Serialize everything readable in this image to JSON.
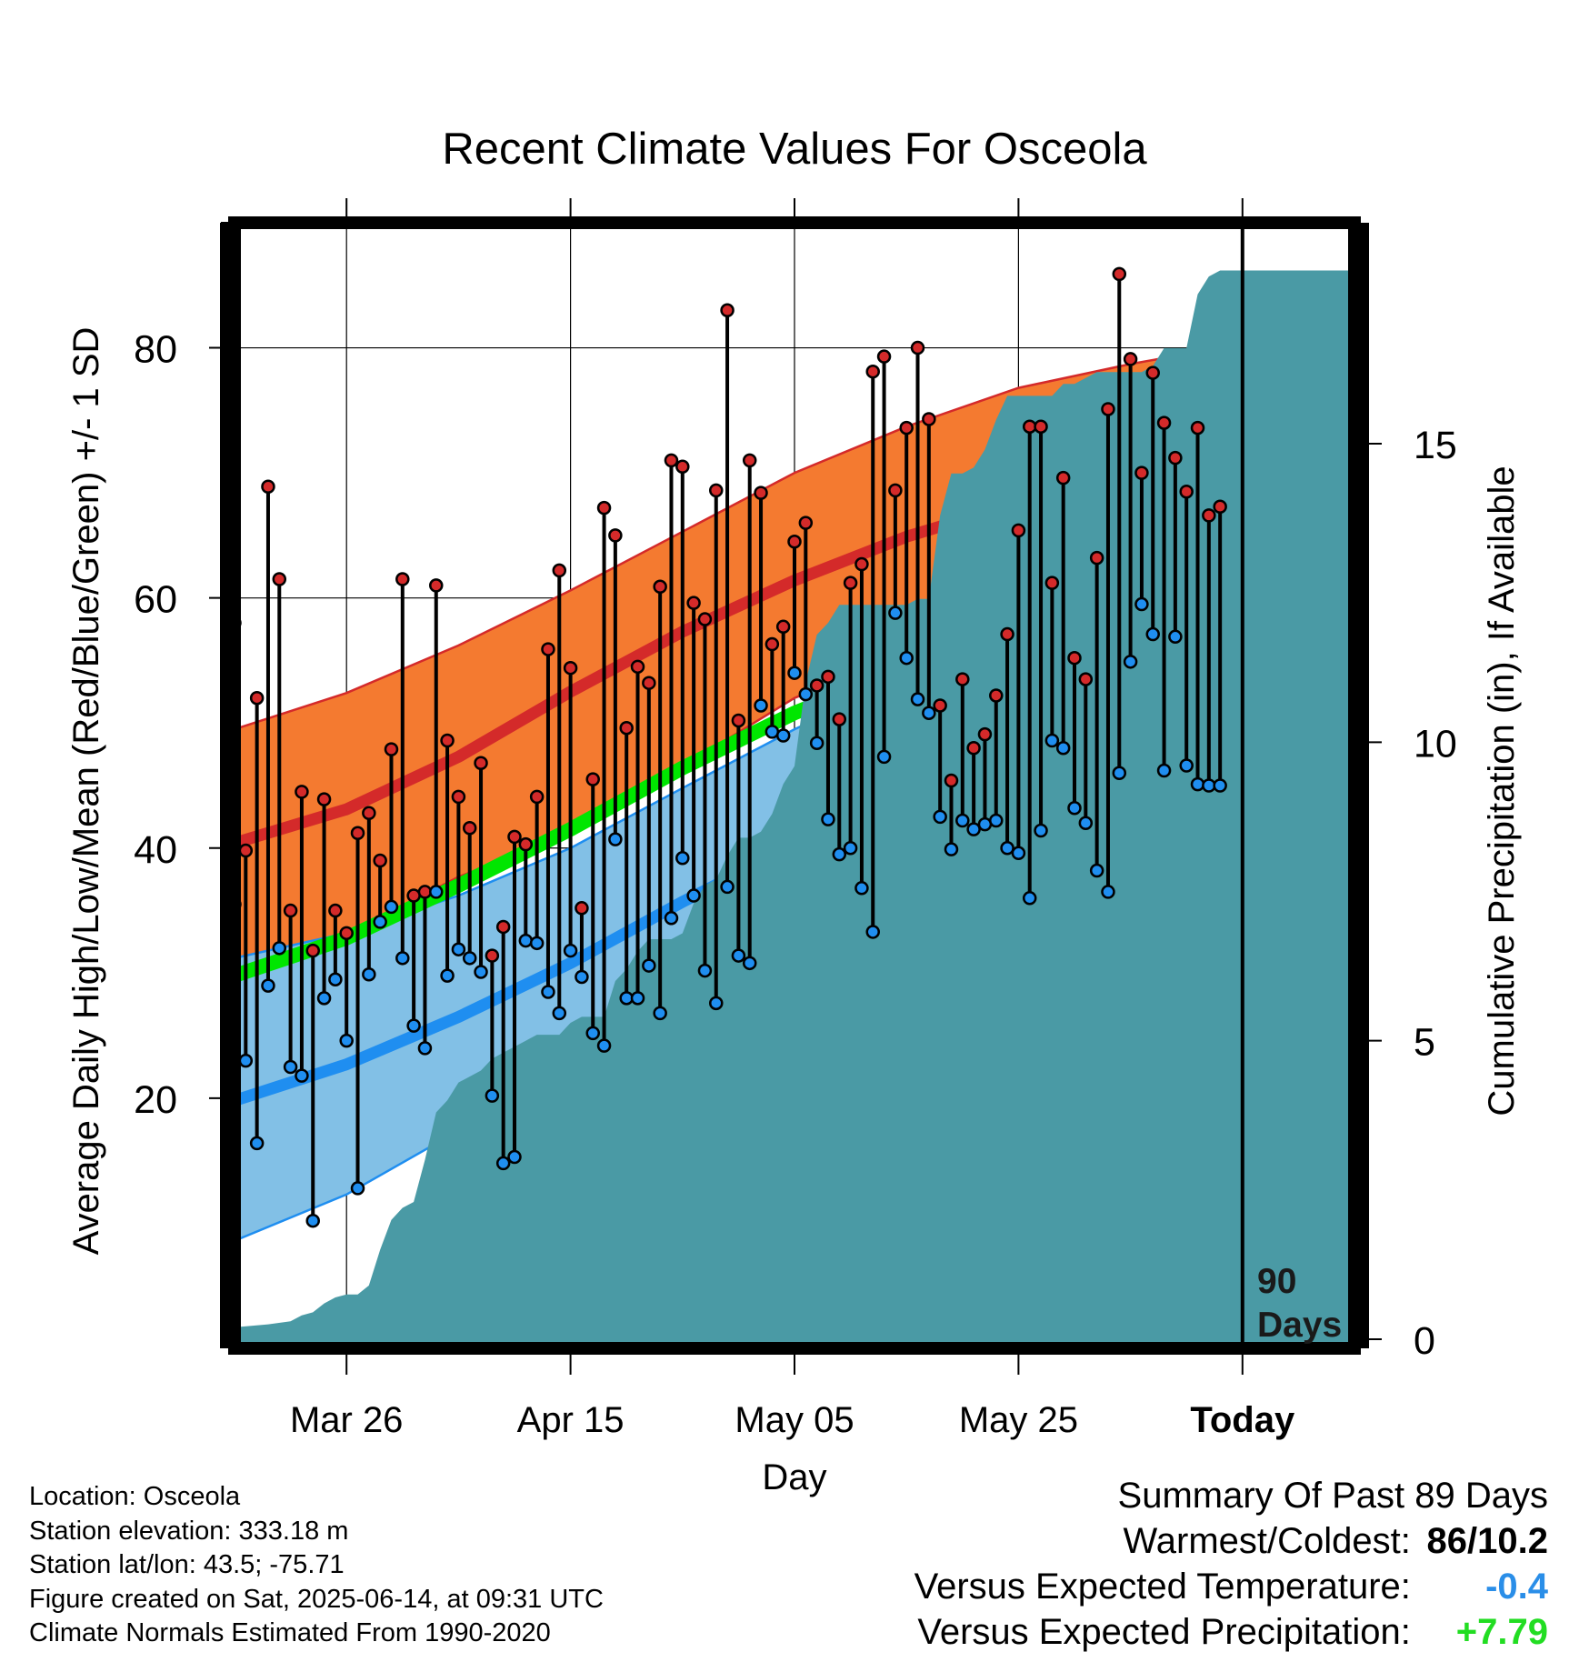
{
  "title": "Recent Climate Values For Osceola",
  "info": {
    "location": "Location: Osceola",
    "elevation": "Station elevation: 333.18 m",
    "latlon": "Station lat/lon: 43.5; -75.71",
    "created": "Figure created on Sat, 2025-06-14, at 09:31 UTC",
    "normals": "Climate Normals Estimated From 1990-2020"
  },
  "summary": {
    "heading": "Summary Of Past 89 Days",
    "warm_cold_label": "Warmest/Coldest:",
    "warm_cold_value": "86/10.2",
    "temp_label": "Versus Expected Temperature:",
    "temp_value": "-0.4",
    "temp_color": "#2a8ee8",
    "precip_label": "Versus Expected Precipitation:",
    "precip_value": "+7.79",
    "precip_color": "#22dd22"
  },
  "chart_data": {
    "type": "line",
    "title": "Recent Climate Values For Osceola",
    "xlabel": "Day",
    "ylabel": "Average Daily High/Low/Mean (Red/Blue/Green) +/- 1 SD",
    "y2label": "Cumulative Precipitation (in), If Available",
    "ylim": [
      0,
      90
    ],
    "y_ticks": [
      20,
      40,
      60,
      80
    ],
    "y2lim": [
      0,
      18.7
    ],
    "y2_ticks": [
      0,
      5,
      10,
      15
    ],
    "x_start": "Mar 16",
    "x_range_days": [
      0,
      100
    ],
    "x_ticks": [
      {
        "day": 10,
        "label": "Mar 26"
      },
      {
        "day": 30,
        "label": "Apr 15"
      },
      {
        "day": 50,
        "label": "May 05"
      },
      {
        "day": 70,
        "label": "May 25"
      },
      {
        "day": 90,
        "label": "Today",
        "bold": true
      }
    ],
    "today_day": 90,
    "today_label_line1": "90",
    "today_label_line2": "Days",
    "colors": {
      "high_band": "#f47a30",
      "high_mean": "#d42a2a",
      "low_band": "#82c0e6",
      "low_mean": "#1f8ef0",
      "mean": "#00e600",
      "precip": "#4a9aa5",
      "high_point": "#d42a2a",
      "low_point": "#1f8ef0"
    },
    "normals": {
      "days": [
        0,
        10,
        20,
        30,
        40,
        50,
        60,
        70,
        80,
        90,
        100
      ],
      "high_mean": [
        40.4,
        43.1,
        47.3,
        52.5,
        57.3,
        61.4,
        64.9,
        67.6,
        70.0,
        72.6,
        75.1
      ],
      "high_sd_upper": [
        49.5,
        52.4,
        56.2,
        60.6,
        65.3,
        70.0,
        73.7,
        76.8,
        78.7,
        80.3,
        81.9
      ],
      "high_sd_lower": [
        28.3,
        33.0,
        37.7,
        41.1,
        46.5,
        52.0,
        55.7,
        58.2,
        61.1,
        64.3,
        68.1
      ],
      "low_mean": [
        19.8,
        22.7,
        26.5,
        30.8,
        35.7,
        40.2,
        43.9,
        47.4,
        50.6,
        53.3,
        55.9
      ],
      "low_sd_upper": [
        31.2,
        33.2,
        36.2,
        40.0,
        44.8,
        49.5,
        53.6,
        56.9,
        59.3,
        61.3,
        62.6
      ],
      "low_sd_lower": [
        8.6,
        12.3,
        17.4,
        23.0,
        28.4,
        33.7,
        37.2,
        40.5,
        43.6,
        46.5,
        49.4
      ],
      "mean": [
        29.8,
        32.8,
        37.0,
        41.5,
        46.4,
        50.8,
        54.4,
        57.7,
        60.5,
        63.0,
        65.5
      ]
    },
    "daily": {
      "days": [
        0,
        1,
        2,
        3,
        4,
        5,
        6,
        7,
        8,
        9,
        10,
        11,
        12,
        13,
        14,
        15,
        16,
        17,
        18,
        19,
        20,
        21,
        22,
        23,
        24,
        25,
        26,
        27,
        28,
        29,
        30,
        31,
        32,
        33,
        34,
        35,
        36,
        37,
        38,
        39,
        40,
        41,
        42,
        43,
        44,
        45,
        46,
        47,
        48,
        49,
        50,
        51,
        52,
        53,
        54,
        55,
        56,
        57,
        58,
        59,
        60,
        61,
        62,
        63,
        64,
        65,
        66,
        67,
        68,
        69,
        70,
        71,
        72,
        73,
        74,
        75,
        76,
        77,
        78,
        79,
        80,
        81,
        82,
        83,
        84,
        85,
        86,
        87,
        88
      ],
      "high": [
        58.0,
        39.8,
        52.0,
        68.9,
        61.5,
        35.0,
        44.5,
        31.8,
        43.9,
        35.0,
        33.2,
        41.2,
        42.8,
        39.0,
        47.9,
        61.5,
        36.2,
        36.5,
        61.0,
        48.6,
        44.1,
        41.6,
        46.8,
        31.4,
        33.7,
        40.9,
        40.3,
        44.1,
        55.9,
        62.2,
        54.4,
        35.2,
        45.5,
        67.2,
        65.0,
        49.6,
        54.5,
        53.2,
        60.9,
        71.0,
        70.5,
        59.6,
        58.3,
        68.6,
        83.0,
        50.2,
        71.0,
        68.4,
        56.3,
        57.7,
        64.5,
        66.0,
        53.0,
        53.7,
        50.3,
        61.2,
        62.7,
        78.1,
        79.3,
        68.6,
        73.6,
        80.0,
        74.3,
        51.4,
        45.4,
        53.5,
        48.0,
        49.1,
        52.2,
        57.1,
        65.4,
        73.7,
        73.7,
        61.2,
        69.6,
        55.2,
        53.5,
        63.2,
        75.1,
        85.9,
        79.1,
        70.0,
        78.0,
        74.0,
        71.2,
        68.5,
        73.6,
        66.6,
        67.3
      ],
      "low": [
        35.5,
        23.0,
        16.4,
        29.0,
        32.0,
        22.5,
        21.8,
        10.2,
        28.0,
        29.5,
        24.6,
        12.8,
        29.9,
        34.1,
        35.3,
        31.2,
        25.8,
        24.0,
        36.5,
        29.8,
        31.9,
        31.2,
        30.1,
        20.2,
        14.8,
        15.3,
        32.6,
        32.4,
        28.5,
        26.8,
        31.8,
        29.7,
        25.2,
        24.2,
        40.7,
        28.0,
        28.0,
        30.6,
        26.8,
        34.4,
        39.2,
        36.2,
        30.2,
        27.6,
        36.9,
        31.4,
        30.8,
        51.4,
        49.3,
        49.0,
        54.0,
        52.3,
        48.4,
        42.3,
        39.5,
        40.0,
        36.8,
        33.3,
        47.3,
        58.8,
        55.2,
        51.9,
        50.8,
        42.5,
        39.9,
        42.2,
        41.5,
        41.9,
        42.2,
        40.0,
        39.6,
        36.0,
        41.4,
        48.6,
        48.0,
        43.2,
        42.0,
        38.2,
        36.5,
        46.0,
        54.9,
        59.5,
        57.1,
        46.2,
        56.9,
        46.6,
        45.1,
        45.0,
        45.0
      ]
    },
    "precip_cumulative": {
      "days": [
        0,
        3,
        5,
        6,
        7,
        8,
        9,
        10,
        11,
        12,
        13,
        14,
        15,
        16,
        17,
        18,
        19,
        20,
        21,
        22,
        23,
        24,
        25,
        26,
        27,
        28,
        29,
        30,
        31,
        32,
        33,
        34,
        35,
        36,
        37,
        38,
        39,
        40,
        41,
        42,
        43,
        44,
        45,
        46,
        47,
        48,
        49,
        50,
        51,
        52,
        53,
        54,
        55,
        56,
        57,
        58,
        59,
        60,
        61,
        62,
        63,
        64,
        65,
        66,
        67,
        68,
        69,
        70,
        71,
        72,
        73,
        74,
        75,
        76,
        77,
        78,
        79,
        80,
        81,
        82,
        83,
        84,
        85,
        86,
        87,
        88,
        89,
        90,
        100
      ],
      "values": [
        0.2,
        0.25,
        0.3,
        0.4,
        0.45,
        0.6,
        0.7,
        0.75,
        0.75,
        0.9,
        1.5,
        2.0,
        2.2,
        2.3,
        3.0,
        3.8,
        4.0,
        4.3,
        4.4,
        4.5,
        4.7,
        4.8,
        4.9,
        5.0,
        5.1,
        5.1,
        5.1,
        5.3,
        5.4,
        5.4,
        5.4,
        6.0,
        6.2,
        6.5,
        6.7,
        6.7,
        6.7,
        6.8,
        7.3,
        7.6,
        7.7,
        8.1,
        8.4,
        8.4,
        8.5,
        8.8,
        9.3,
        9.6,
        11.0,
        11.8,
        12.0,
        12.3,
        12.3,
        12.3,
        12.3,
        12.3,
        12.3,
        12.3,
        12.4,
        12.4,
        13.8,
        14.5,
        14.5,
        14.6,
        14.9,
        15.4,
        15.8,
        15.8,
        15.8,
        15.8,
        15.8,
        16.0,
        16.0,
        16.1,
        16.2,
        16.2,
        16.2,
        16.2,
        16.2,
        16.3,
        16.6,
        16.6,
        16.6,
        17.5,
        17.8,
        17.9,
        17.9,
        17.9,
        17.9
      ]
    }
  }
}
